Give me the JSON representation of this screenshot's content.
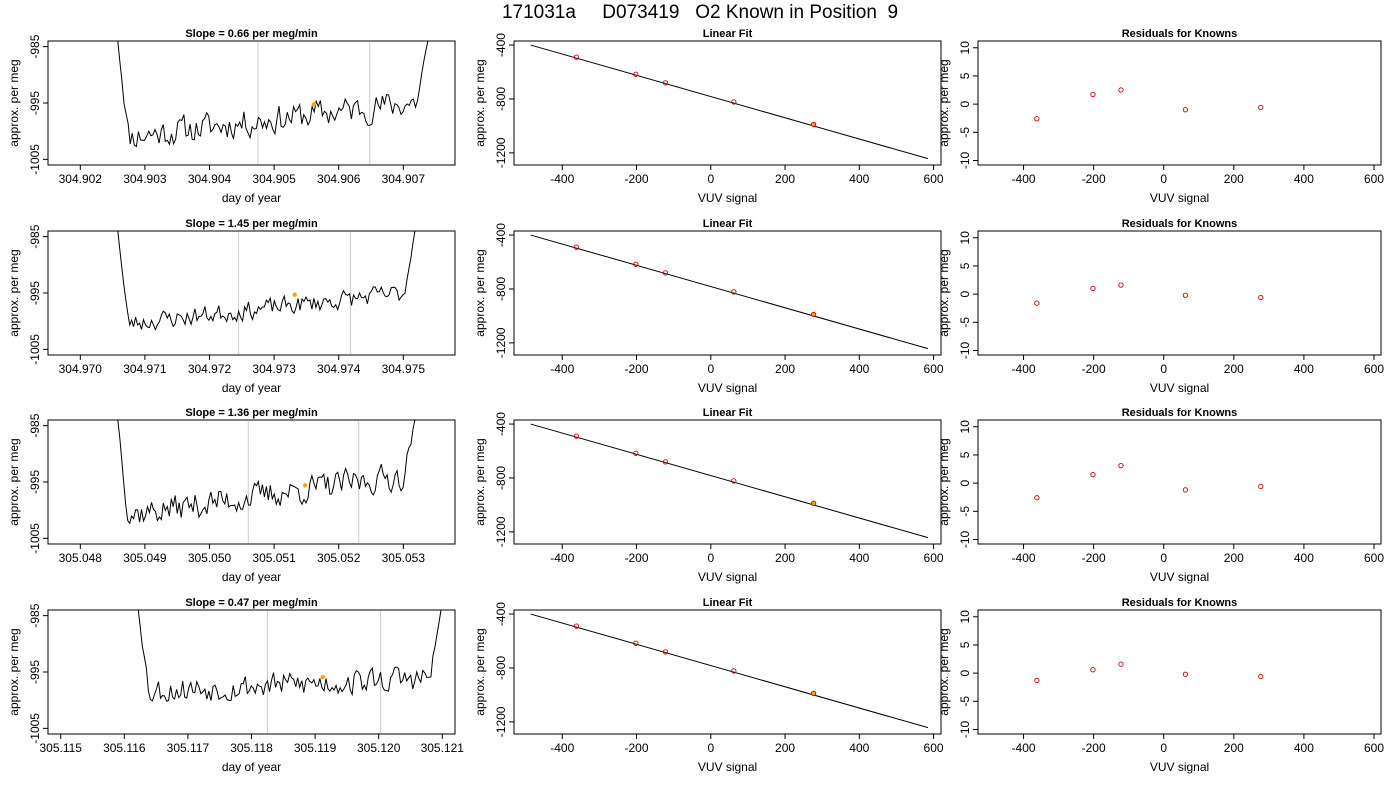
{
  "page": {
    "title": "171031a     D073419   O2 Known in Position  9"
  },
  "chart_data": [
    {
      "type": "line",
      "title": "Slope =  0.66  per meg/min",
      "xlabel": "day of year",
      "ylabel": "approx. per meg",
      "xlim": [
        304.9015,
        304.9078
      ],
      "ylim": [
        -1006,
        -984
      ],
      "x_ticks": [
        "304.902",
        "304.903",
        "304.904",
        "304.905",
        "304.906",
        "304.907"
      ],
      "y_ticks": [
        "-985",
        "-995",
        "-1005"
      ],
      "x_start": 304.90258,
      "x_end": 304.90738,
      "vlines": [
        304.90475,
        304.90648
      ],
      "mean_marker": {
        "x": 304.90562,
        "y": -995.2,
        "color": "#ffa500"
      },
      "line_color": "#000000",
      "vline_color": "#cccccc",
      "grid": false,
      "noise_amp": 2.3,
      "seed": 11,
      "trend_start": -1001.2,
      "trend_end": -994.6
    },
    {
      "type": "scatter",
      "title": "Linear Fit",
      "xlabel": "VUV signal",
      "ylabel": "approx. per meg",
      "xlim": [
        -530,
        620
      ],
      "ylim": [
        -1290,
        -370
      ],
      "x_ticks": [
        "-400",
        "-200",
        "0",
        "200",
        "400",
        "600"
      ],
      "y_ticks": [
        "-400",
        "-800",
        "-1200"
      ],
      "fit_line": {
        "x": [
          -485,
          585
        ],
        "y": [
          -400,
          -1243
        ]
      },
      "points_x": [
        -362,
        -202,
        -122,
        62,
        277
      ],
      "points_y": [
        -490,
        -617,
        -681,
        -822,
        -989
      ],
      "point_color": "#cc0000",
      "highlight_index": 4,
      "highlight_color": "#ffa500",
      "grid": false
    },
    {
      "type": "scatter",
      "title": "Residuals for Knowns",
      "xlabel": "VUV signal",
      "ylabel": "approx. per meg",
      "xlim": [
        -530,
        620
      ],
      "ylim": [
        -10.8,
        11.2
      ],
      "x_ticks": [
        "-400",
        "-200",
        "0",
        "200",
        "400",
        "600"
      ],
      "y_ticks": [
        "10",
        "5",
        "0",
        "-5",
        "-10"
      ],
      "points_x": [
        -362,
        -202,
        -122,
        62,
        277
      ],
      "points_y": [
        -2.6,
        1.7,
        2.5,
        -1.0,
        -0.6
      ],
      "point_color": "#cc0000",
      "grid": false
    },
    {
      "type": "line",
      "title": "Slope =  1.45  per meg/min",
      "xlabel": "day of year",
      "ylabel": "approx. per meg",
      "xlim": [
        304.9695,
        304.9758
      ],
      "ylim": [
        -1006,
        -984
      ],
      "x_ticks": [
        "304.970",
        "304.971",
        "304.972",
        "304.973",
        "304.974",
        "304.975"
      ],
      "y_ticks": [
        "-985",
        "-995",
        "-1005"
      ],
      "x_start": 304.97058,
      "x_end": 304.97518,
      "vlines": [
        304.97245,
        304.97418
      ],
      "mean_marker": {
        "x": 304.97332,
        "y": -995.3,
        "color": "#ffa500"
      },
      "line_color": "#000000",
      "vline_color": "#cccccc",
      "grid": false,
      "noise_amp": 1.5,
      "seed": 23,
      "trend_start": -1000.6,
      "trend_end": -994.8
    },
    {
      "type": "scatter",
      "title": "Linear Fit",
      "xlabel": "VUV signal",
      "ylabel": "approx. per meg",
      "xlim": [
        -530,
        620
      ],
      "ylim": [
        -1290,
        -370
      ],
      "x_ticks": [
        "-400",
        "-200",
        "0",
        "200",
        "400",
        "600"
      ],
      "y_ticks": [
        "-400",
        "-800",
        "-1200"
      ],
      "fit_line": {
        "x": [
          -485,
          585
        ],
        "y": [
          -400,
          -1243
        ]
      },
      "points_x": [
        -362,
        -202,
        -122,
        62,
        277
      ],
      "points_y": [
        -490,
        -617,
        -681,
        -822,
        -989
      ],
      "point_color": "#cc0000",
      "highlight_index": 4,
      "highlight_color": "#ffa500",
      "grid": false
    },
    {
      "type": "scatter",
      "title": "Residuals for Knowns",
      "xlabel": "VUV signal",
      "ylabel": "approx. per meg",
      "xlim": [
        -530,
        620
      ],
      "ylim": [
        -10.8,
        11.2
      ],
      "x_ticks": [
        "-400",
        "-200",
        "0",
        "200",
        "400",
        "600"
      ],
      "y_ticks": [
        "10",
        "5",
        "0",
        "-5",
        "-10"
      ],
      "points_x": [
        -362,
        -202,
        -122,
        62,
        277
      ],
      "points_y": [
        -1.6,
        1.0,
        1.6,
        -0.2,
        -0.6
      ],
      "point_color": "#cc0000",
      "grid": false
    },
    {
      "type": "line",
      "title": "Slope =  1.36  per meg/min",
      "xlabel": "day of year",
      "ylabel": "approx. per meg",
      "xlim": [
        305.0475,
        305.0538
      ],
      "ylim": [
        -1006,
        -984
      ],
      "x_ticks": [
        "305.048",
        "305.049",
        "305.050",
        "305.051",
        "305.052",
        "305.053"
      ],
      "y_ticks": [
        "-985",
        "-995",
        "-1005"
      ],
      "x_start": 305.04858,
      "x_end": 305.05318,
      "vlines": [
        305.0506,
        305.05231
      ],
      "mean_marker": {
        "x": 305.05148,
        "y": -995.6,
        "color": "#ffa500"
      },
      "line_color": "#000000",
      "vline_color": "#cccccc",
      "grid": false,
      "noise_amp": 2.2,
      "seed": 37,
      "trend_start": -1001.0,
      "trend_end": -993.6
    },
    {
      "type": "scatter",
      "title": "Linear Fit",
      "xlabel": "VUV signal",
      "ylabel": "approx. per meg",
      "xlim": [
        -530,
        620
      ],
      "ylim": [
        -1290,
        -370
      ],
      "x_ticks": [
        "-400",
        "-200",
        "0",
        "200",
        "400",
        "600"
      ],
      "y_ticks": [
        "-400",
        "-800",
        "-1200"
      ],
      "fit_line": {
        "x": [
          -485,
          585
        ],
        "y": [
          -400,
          -1243
        ]
      },
      "points_x": [
        -362,
        -202,
        -122,
        62,
        277
      ],
      "points_y": [
        -490,
        -617,
        -681,
        -822,
        -989
      ],
      "point_color": "#cc0000",
      "highlight_index": 4,
      "highlight_color": "#ffa500",
      "grid": false
    },
    {
      "type": "scatter",
      "title": "Residuals for Knowns",
      "xlabel": "VUV signal",
      "ylabel": "approx. per meg",
      "xlim": [
        -530,
        620
      ],
      "ylim": [
        -10.8,
        11.2
      ],
      "x_ticks": [
        "-400",
        "-200",
        "0",
        "200",
        "400",
        "600"
      ],
      "y_ticks": [
        "10",
        "5",
        "0",
        "-5",
        "-10"
      ],
      "points_x": [
        -362,
        -202,
        -122,
        62,
        277
      ],
      "points_y": [
        -2.6,
        1.5,
        3.1,
        -1.2,
        -0.6
      ],
      "point_color": "#cc0000",
      "grid": false
    },
    {
      "type": "line",
      "title": "Slope =  0.47  per meg/min",
      "xlabel": "day of year",
      "ylabel": "approx. per meg",
      "xlim": [
        305.1148,
        305.1212
      ],
      "ylim": [
        -1006,
        -984
      ],
      "x_ticks": [
        "305.115",
        "305.116",
        "305.117",
        "305.118",
        "305.119",
        "305.120",
        "305.121"
      ],
      "y_ticks": [
        "-985",
        "-995",
        "-1005"
      ],
      "x_start": 305.11622,
      "x_end": 305.12098,
      "vlines": [
        305.11825,
        305.12003
      ],
      "mean_marker": {
        "x": 305.11912,
        "y": -995.9,
        "color": "#ffa500"
      },
      "line_color": "#000000",
      "vline_color": "#cccccc",
      "grid": false,
      "noise_amp": 2.1,
      "seed": 53,
      "trend_start": -998.4,
      "trend_end": -996.0
    },
    {
      "type": "scatter",
      "title": "Linear Fit",
      "xlabel": "VUV signal",
      "ylabel": "approx. per meg",
      "xlim": [
        -530,
        620
      ],
      "ylim": [
        -1290,
        -370
      ],
      "x_ticks": [
        "-400",
        "-200",
        "0",
        "200",
        "400",
        "600"
      ],
      "y_ticks": [
        "-400",
        "-800",
        "-1200"
      ],
      "fit_line": {
        "x": [
          -485,
          585
        ],
        "y": [
          -400,
          -1243
        ]
      },
      "points_x": [
        -362,
        -202,
        -122,
        62,
        277
      ],
      "points_y": [
        -490,
        -617,
        -681,
        -822,
        -989
      ],
      "point_color": "#cc0000",
      "highlight_index": 4,
      "highlight_color": "#ffa500",
      "grid": false
    },
    {
      "type": "scatter",
      "title": "Residuals for Knowns",
      "xlabel": "VUV signal",
      "ylabel": "approx. per meg",
      "xlim": [
        -530,
        620
      ],
      "ylim": [
        -10.8,
        11.2
      ],
      "x_ticks": [
        "-400",
        "-200",
        "0",
        "200",
        "400",
        "600"
      ],
      "y_ticks": [
        "10",
        "5",
        "0",
        "-5",
        "-10"
      ],
      "points_x": [
        -362,
        -202,
        -122,
        62,
        277
      ],
      "points_y": [
        -1.3,
        0.6,
        1.6,
        -0.2,
        -0.6
      ],
      "point_color": "#cc0000",
      "grid": false
    }
  ]
}
